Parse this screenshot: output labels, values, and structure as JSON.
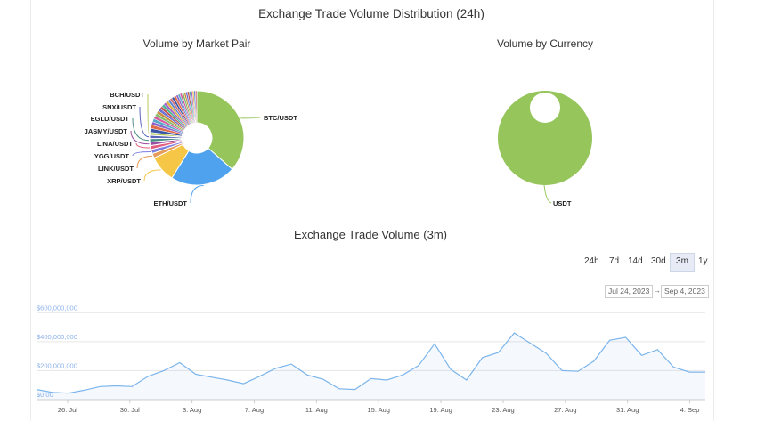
{
  "page": {
    "title": "Exchange Trade Volume Distribution (24h)",
    "pair_chart_title": "Volume by Market Pair",
    "currency_chart_title": "Volume by Currency",
    "volume_chart_title": "Exchange Trade Volume (3m)"
  },
  "range_selector": {
    "buttons": [
      "24h",
      "7d",
      "14d",
      "30d",
      "3m",
      "1y"
    ],
    "selected": "3m",
    "from": "Jul 24, 2023",
    "to": "Sep 4, 2023",
    "arrow": "→"
  },
  "chart_data": [
    {
      "type": "pie",
      "title": "Volume by Market Pair",
      "labels": [
        "BTC/USDT",
        "ETH/USDT",
        "XRP/USDT",
        "LINK/USDT",
        "YGG/USDT",
        "LINA/USDT",
        "JASMY/USDT",
        "EGLD/USDT",
        "SNX/USDT",
        "BCH/USDT"
      ],
      "labeled_values": [
        36,
        22,
        9,
        1.6,
        1.4,
        1.3,
        1.2,
        1.2,
        1.1,
        1.0
      ],
      "other_values": [
        1.3,
        1.2,
        1.1,
        1.1,
        1.0,
        1.0,
        1.0,
        1.0,
        0.9,
        0.9,
        0.9,
        0.9,
        0.8,
        0.8,
        0.8,
        0.8,
        0.7,
        0.7,
        0.7,
        0.7,
        0.6,
        0.6,
        0.6,
        0.6,
        0.5,
        0.5,
        0.5,
        0.5
      ],
      "colors": [
        "#96c55c",
        "#4fa3ee",
        "#f6c646",
        "#e59b5a",
        "#7c7ee0",
        "#e25d7e",
        "#9c4fa1",
        "#4f8f8a",
        "#5964b8",
        "#b7c85a"
      ],
      "other_colors": [
        "#3c56a8",
        "#df6a48",
        "#8a64c9",
        "#58a9c9",
        "#d45b9e",
        "#7fbd6b",
        "#c98b3c",
        "#6b6fd4",
        "#c25353",
        "#4bb59b",
        "#a55fc9",
        "#e0b040",
        "#5a86d6",
        "#d36f7b"
      ]
    },
    {
      "type": "pie",
      "title": "Volume by Currency",
      "labels": [
        "USDT"
      ],
      "values": [
        100
      ],
      "colors": [
        "#96c55c"
      ]
    },
    {
      "type": "area",
      "title": "Exchange Trade Volume (3m)",
      "ylabel": "",
      "ylim": [
        0,
        700000000
      ],
      "y_ticks": [
        0,
        200000000,
        400000000,
        600000000
      ],
      "y_tick_labels": [
        "$0.00",
        "$200,000,000",
        "$400,000,000",
        "$600,000,000"
      ],
      "x_ticks": [
        "26. Jul",
        "30. Jul",
        "3. Aug",
        "7. Aug",
        "11. Aug",
        "15. Aug",
        "19. Aug",
        "23. Aug",
        "27. Aug",
        "31. Aug",
        "4. Sep"
      ],
      "x_start": "2023-07-24",
      "x_end": "2023-09-05",
      "grid": true,
      "color": "#7cb5ec",
      "series": [
        {
          "values": [
            70000000,
            50000000,
            45000000,
            65000000,
            90000000,
            95000000,
            90000000,
            160000000,
            200000000,
            255000000,
            175000000,
            155000000,
            135000000,
            110000000,
            160000000,
            215000000,
            245000000,
            170000000,
            140000000,
            75000000,
            70000000,
            145000000,
            135000000,
            170000000,
            235000000,
            385000000,
            210000000,
            135000000,
            290000000,
            325000000,
            460000000,
            390000000,
            320000000,
            200000000,
            195000000,
            265000000,
            410000000,
            430000000,
            305000000,
            345000000,
            225000000,
            190000000,
            190000000
          ]
        }
      ]
    }
  ]
}
